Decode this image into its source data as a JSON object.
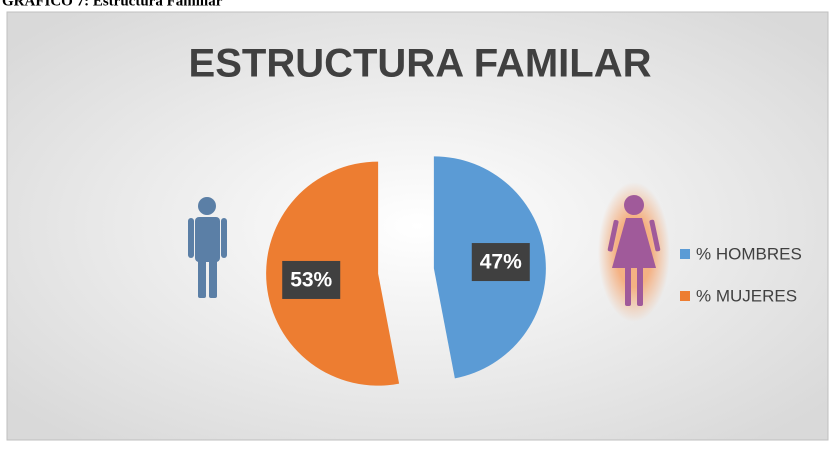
{
  "caption": "GRÁFICO 7: Estructura Familiar",
  "chart_data": {
    "type": "pie",
    "title": "ESTRUCTURA FAMILAR",
    "categories": [
      "% HOMBRES",
      "% MUJERES"
    ],
    "values": [
      47,
      53
    ],
    "value_labels": [
      "47%",
      "53%"
    ],
    "colors": [
      "#5b9bd5",
      "#ed7d31"
    ],
    "legend": "right"
  }
}
